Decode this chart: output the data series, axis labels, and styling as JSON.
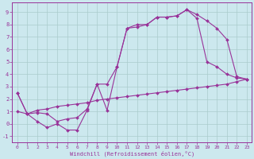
{
  "xlabel": "Windchill (Refroidissement éolien,°C)",
  "bg_color": "#cce8ee",
  "grid_color": "#aacccc",
  "line_color": "#993399",
  "marker": "D",
  "markersize": 2,
  "linewidth": 0.8,
  "xlim": [
    -0.5,
    23.5
  ],
  "ylim": [
    -1.5,
    9.8
  ],
  "yticks": [
    -1,
    0,
    1,
    2,
    3,
    4,
    5,
    6,
    7,
    8,
    9
  ],
  "xticks": [
    0,
    1,
    2,
    3,
    4,
    5,
    6,
    7,
    8,
    9,
    10,
    11,
    12,
    13,
    14,
    15,
    16,
    17,
    18,
    19,
    20,
    21,
    22,
    23
  ],
  "series1": [
    [
      0,
      2.5
    ],
    [
      1,
      0.8
    ],
    [
      2,
      0.2
    ],
    [
      3,
      -0.3
    ],
    [
      4,
      0.0
    ],
    [
      5,
      -0.5
    ],
    [
      6,
      -0.5
    ],
    [
      7,
      1.1
    ],
    [
      8,
      3.2
    ],
    [
      9,
      1.1
    ],
    [
      10,
      4.6
    ],
    [
      11,
      7.7
    ],
    [
      12,
      8.0
    ],
    [
      13,
      8.0
    ],
    [
      14,
      8.6
    ],
    [
      15,
      8.6
    ],
    [
      16,
      8.7
    ],
    [
      17,
      9.2
    ],
    [
      18,
      8.8
    ],
    [
      19,
      8.3
    ],
    [
      20,
      7.7
    ],
    [
      21,
      6.8
    ],
    [
      22,
      3.8
    ],
    [
      23,
      3.6
    ]
  ],
  "series2": [
    [
      0,
      2.5
    ],
    [
      1,
      0.8
    ],
    [
      2,
      0.9
    ],
    [
      3,
      0.8
    ],
    [
      4,
      0.2
    ],
    [
      5,
      0.4
    ],
    [
      6,
      0.5
    ],
    [
      7,
      1.2
    ],
    [
      8,
      3.2
    ],
    [
      9,
      3.2
    ],
    [
      10,
      4.6
    ],
    [
      11,
      7.7
    ],
    [
      12,
      7.8
    ],
    [
      13,
      8.0
    ],
    [
      14,
      8.6
    ],
    [
      15,
      8.6
    ],
    [
      16,
      8.7
    ],
    [
      17,
      9.2
    ],
    [
      18,
      8.5
    ],
    [
      19,
      5.0
    ],
    [
      20,
      4.6
    ],
    [
      21,
      4.0
    ],
    [
      22,
      3.7
    ],
    [
      23,
      3.6
    ]
  ],
  "series3": [
    [
      0,
      1.0
    ],
    [
      1,
      0.8
    ],
    [
      2,
      1.1
    ],
    [
      3,
      1.2
    ],
    [
      4,
      1.4
    ],
    [
      5,
      1.5
    ],
    [
      6,
      1.6
    ],
    [
      7,
      1.7
    ],
    [
      8,
      1.9
    ],
    [
      9,
      2.0
    ],
    [
      10,
      2.1
    ],
    [
      11,
      2.2
    ],
    [
      12,
      2.3
    ],
    [
      13,
      2.4
    ],
    [
      14,
      2.5
    ],
    [
      15,
      2.6
    ],
    [
      16,
      2.7
    ],
    [
      17,
      2.8
    ],
    [
      18,
      2.9
    ],
    [
      19,
      3.0
    ],
    [
      20,
      3.1
    ],
    [
      21,
      3.2
    ],
    [
      22,
      3.4
    ],
    [
      23,
      3.6
    ]
  ]
}
